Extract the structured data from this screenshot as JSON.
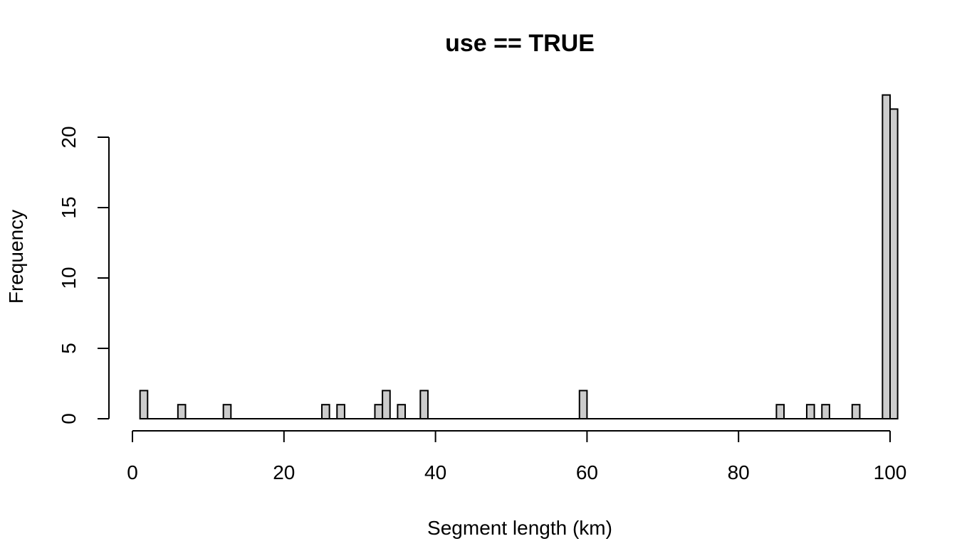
{
  "chart_data": {
    "type": "bar",
    "title": "use == TRUE",
    "xlabel": "Segment length (km)",
    "ylabel": "Frequency",
    "xlim": [
      0,
      100
    ],
    "ylim": [
      0,
      23
    ],
    "bin_width": 1,
    "x_ticks": [
      0,
      20,
      40,
      60,
      80,
      100
    ],
    "y_ticks": [
      0,
      5,
      10,
      15,
      20
    ],
    "bars": [
      {
        "x0": 1,
        "x1": 2,
        "count": 2
      },
      {
        "x0": 6,
        "x1": 7,
        "count": 1
      },
      {
        "x0": 12,
        "x1": 13,
        "count": 1
      },
      {
        "x0": 25,
        "x1": 26,
        "count": 1
      },
      {
        "x0": 27,
        "x1": 28,
        "count": 1
      },
      {
        "x0": 32,
        "x1": 33,
        "count": 1
      },
      {
        "x0": 33,
        "x1": 34,
        "count": 2
      },
      {
        "x0": 35,
        "x1": 36,
        "count": 1
      },
      {
        "x0": 38,
        "x1": 39,
        "count": 2
      },
      {
        "x0": 59,
        "x1": 60,
        "count": 2
      },
      {
        "x0": 85,
        "x1": 86,
        "count": 1
      },
      {
        "x0": 89,
        "x1": 90,
        "count": 1
      },
      {
        "x0": 91,
        "x1": 92,
        "count": 1
      },
      {
        "x0": 95,
        "x1": 96,
        "count": 1
      },
      {
        "x0": 99,
        "x1": 100,
        "count": 23
      },
      {
        "x0": 100,
        "x1": 101,
        "count": 22
      }
    ],
    "bar_fill": "#cccccc",
    "grid": false,
    "legend": "none"
  }
}
